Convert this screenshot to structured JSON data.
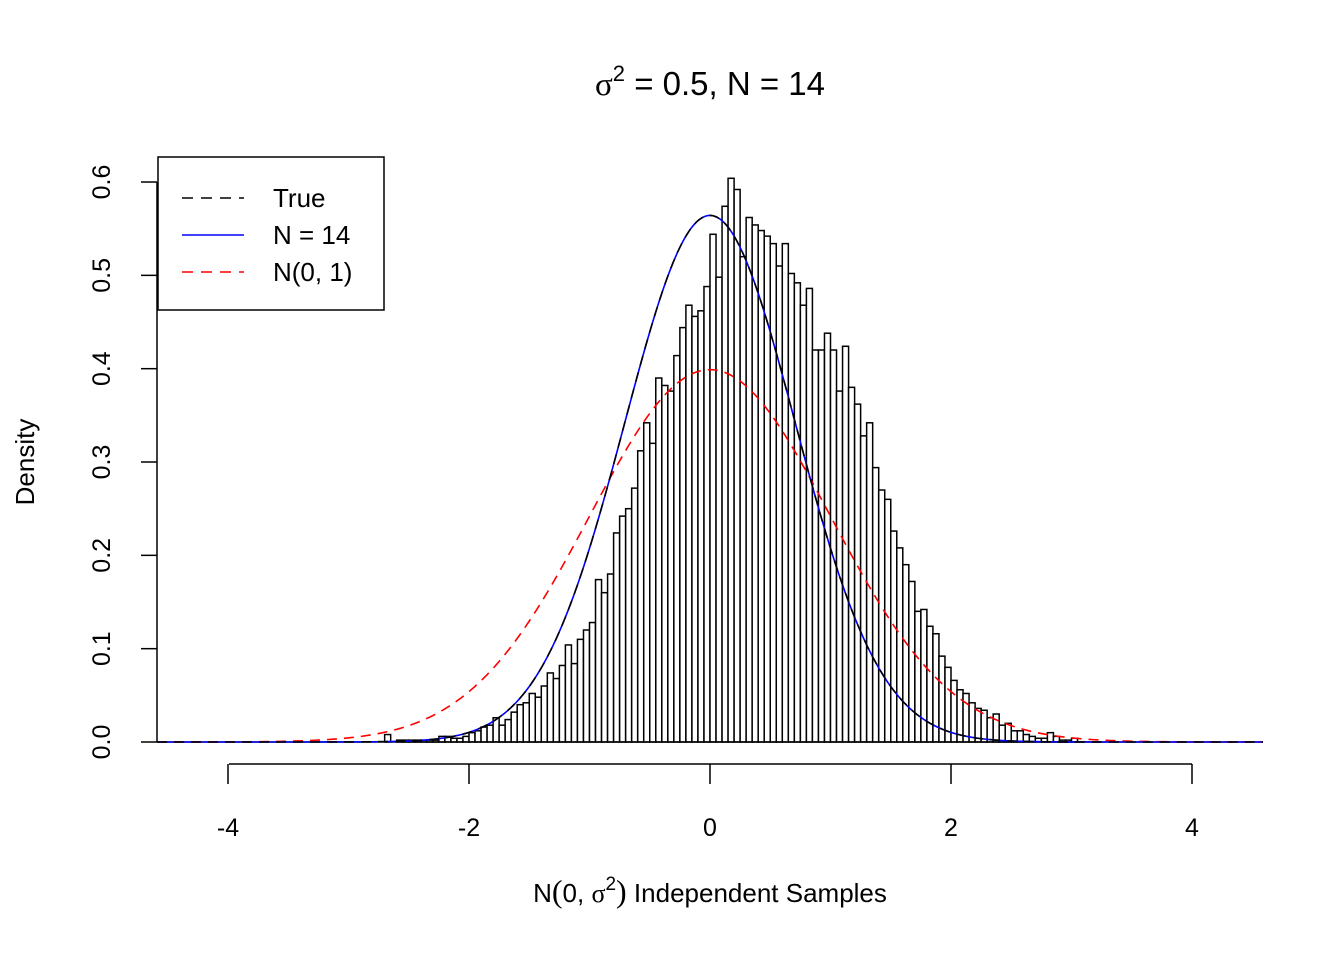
{
  "chart_data": {
    "type": "histogram",
    "title": {
      "sigma": "σ",
      "sup": "2",
      "rest": " = 0.5, N = 14"
    },
    "xlabel": {
      "pre": "N",
      "paren_open": "(",
      "inner": "0, ",
      "sigma": "σ",
      "sup": "2",
      "paren_close": ")",
      "post": " Independent Samples"
    },
    "ylabel": "Density",
    "xlim": [
      -4.6,
      4.6
    ],
    "ylim": [
      0,
      0.6
    ],
    "x_ticks": [
      -4,
      -2,
      0,
      2,
      4
    ],
    "x_tick_labels": [
      "-4",
      "-2",
      "0",
      "2",
      "4"
    ],
    "y_ticks": [
      0.0,
      0.1,
      0.2,
      0.3,
      0.4,
      0.5,
      0.6
    ],
    "y_tick_labels": [
      "0.0",
      "0.1",
      "0.2",
      "0.3",
      "0.4",
      "0.5",
      "0.6"
    ],
    "bin_start": -2.7,
    "bin_width": 0.05,
    "bin_densities": [
      0.008,
      0,
      0.002,
      0.002,
      0.002,
      0.002,
      0.002,
      0.002,
      0.002,
      0.006,
      0.006,
      0.004,
      0.004,
      0.006,
      0.01,
      0.012,
      0.016,
      0.018,
      0.026,
      0.018,
      0.024,
      0.032,
      0.04,
      0.042,
      0.052,
      0.048,
      0.06,
      0.074,
      0.068,
      0.082,
      0.104,
      0.084,
      0.11,
      0.12,
      0.128,
      0.174,
      0.16,
      0.18,
      0.224,
      0.242,
      0.25,
      0.272,
      0.312,
      0.342,
      0.32,
      0.39,
      0.382,
      0.376,
      0.414,
      0.444,
      0.468,
      0.456,
      0.462,
      0.488,
      0.544,
      0.498,
      0.574,
      0.604,
      0.592,
      0.52,
      0.562,
      0.554,
      0.548,
      0.542,
      0.534,
      0.51,
      0.534,
      0.502,
      0.492,
      0.468,
      0.486,
      0.42,
      0.42,
      0.438,
      0.42,
      0.376,
      0.424,
      0.38,
      0.362,
      0.328,
      0.342,
      0.294,
      0.27,
      0.26,
      0.226,
      0.208,
      0.19,
      0.172,
      0.14,
      0.142,
      0.124,
      0.116,
      0.092,
      0.08,
      0.066,
      0.056,
      0.052,
      0.042,
      0.036,
      0.034,
      0.026,
      0.03,
      0.018,
      0.02,
      0.012,
      0.012,
      0.008,
      0.006,
      0.004,
      0.004,
      0.01,
      0.006,
      0.002,
      0.002,
      0.004
    ],
    "series": [
      {
        "name": "True",
        "color": "#000000",
        "dash": "dashed",
        "mean": 0,
        "variance": 0.5
      },
      {
        "name": "N = 14",
        "color": "#0000ff",
        "dash": "solid",
        "mean": 0,
        "variance": 0.5
      },
      {
        "name": "N(0, 1)",
        "color": "#ff0000",
        "dash": "dashed",
        "mean": 0,
        "variance": 1.0
      }
    ],
    "legend": {
      "position": "top-left",
      "entries": [
        "True",
        "N = 14",
        "N(0, 1)"
      ]
    }
  }
}
